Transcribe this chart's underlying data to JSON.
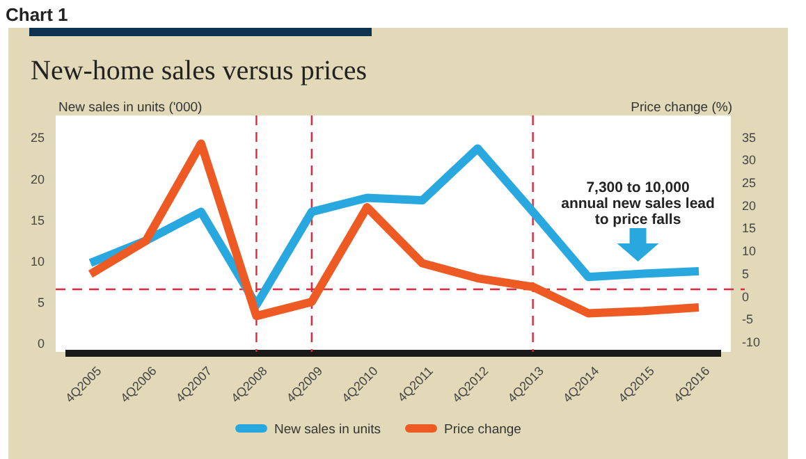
{
  "chart_data": {
    "type": "line",
    "title": "New-home sales versus prices",
    "ylabel": "New sales in units ('000)",
    "y2label": "Price change (%)",
    "categories": [
      "4Q2005",
      "4Q2006",
      "4Q2007",
      "4Q2008",
      "4Q2009",
      "4Q2010",
      "4Q2011",
      "4Q2012",
      "4Q2013",
      "4Q2014",
      "4Q2015",
      "4Q2016"
    ],
    "series": [
      {
        "name": "New sales in units",
        "color": "#29a8e0",
        "values": [
          9.8,
          12.5,
          16,
          4.7,
          16,
          17.7,
          17.4,
          23.7,
          16,
          8.1,
          8.5,
          8.8
        ]
      },
      {
        "name": "Price change",
        "color": "#ee5a24",
        "axis": "y2",
        "values": [
          4.9,
          12.2,
          33.6,
          -4.3,
          -1.2,
          19.6,
          7.3,
          4,
          2.1,
          -3.7,
          -3.2,
          -2.4
        ]
      }
    ],
    "ylim": [
      -1,
      27.7
    ],
    "yticks": [
      0,
      5,
      10,
      15,
      20,
      25
    ],
    "y2lim": [
      -12.2,
      39.8
    ],
    "y2ticks": [
      -10,
      -5,
      0,
      5,
      10,
      15,
      20,
      25,
      30,
      35
    ],
    "ref_lines": [
      {
        "axis": "y",
        "value": 6.6,
        "color": "#e0283c",
        "line_style": "dashed"
      },
      {
        "axis": "x",
        "value": "4Q2008",
        "color": "#e0283c",
        "line_style": "dashed"
      },
      {
        "axis": "x",
        "value": "4Q2009",
        "color": "#e0283c",
        "line_style": "dashed"
      },
      {
        "axis": "x",
        "value": "4Q2013",
        "color": "#e0283c",
        "line_style": "dashed"
      }
    ],
    "annotations": [
      "Chart 1",
      "7,300 to 10,000 annual new sales lead to price falls"
    ],
    "legend": "bottom",
    "grid": false,
    "line_style": "solid",
    "marker": "none"
  }
}
